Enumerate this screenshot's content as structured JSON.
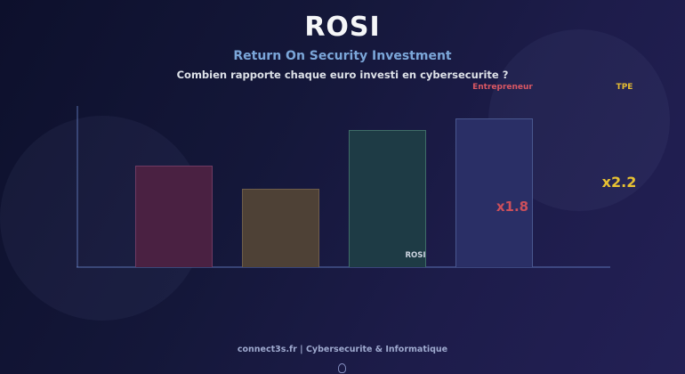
{
  "page": {
    "title": "ROSI",
    "subtitle": "Return On Security Investment",
    "question": "Combien rapporte chaque euro investi en cybersecurite ?",
    "footer": "connect3s.fr | Cybersecurite & Informatique"
  },
  "colors": {
    "title": "#f5f6f8",
    "subtitle": "#7ba6d9",
    "question": "#dde1e8",
    "entrepreneur": "#d95763",
    "tpe": "#e5bc32",
    "x18": "#cc4f5b",
    "x22": "#e8c232",
    "rosi_bar_label": "#ccd4e0",
    "footer": "#9ea9ce",
    "background_dark": "#0d102c",
    "background_light": "#232055"
  },
  "chart_data": {
    "type": "bar",
    "title": "ROSI",
    "subtitle": "Return On Security Investment",
    "question": "Combien rapporte chaque euro investi en cybersecurite ?",
    "xlabel": "",
    "ylabel": "",
    "grid": false,
    "y_ticks_visible": false,
    "ylim": [
      0,
      1.95
    ],
    "bars": [
      {
        "label": "",
        "value": 1.23,
        "annotation": "",
        "fill": "#4a2142",
        "border": "#6f3a62",
        "drawn": true
      },
      {
        "label": "",
        "value": 0.95,
        "annotation": "",
        "fill": "#4e4136",
        "border": "#6e5d4a",
        "drawn": true
      },
      {
        "label": "ROSI",
        "value": 1.66,
        "annotation": "",
        "fill": "#1e3b45",
        "border": "#3f6d68",
        "drawn": true
      },
      {
        "label": "Entrepreneur",
        "value": 1.8,
        "annotation": "x1.8",
        "fill": "#2a2f66",
        "border": "#49578f",
        "drawn": true
      },
      {
        "label": "TPE",
        "value": 2.2,
        "annotation": "x2.2",
        "fill": "",
        "border": "",
        "drawn": false
      }
    ]
  }
}
